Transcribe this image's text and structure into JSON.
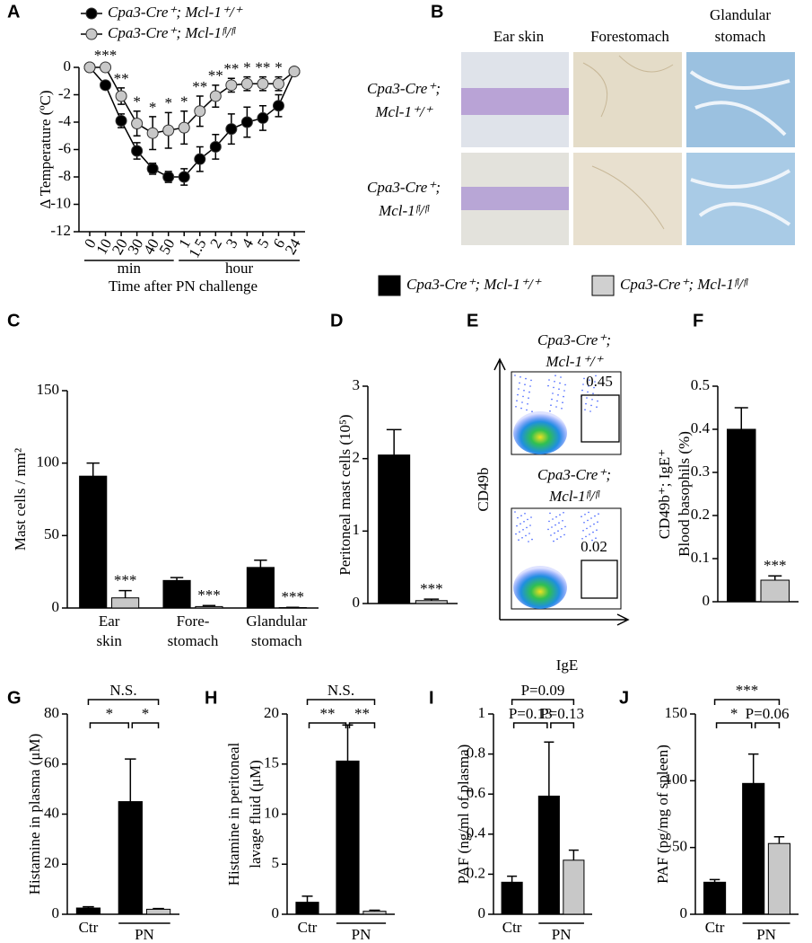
{
  "chart_data": [
    {
      "type": "line",
      "panel": "A",
      "categories": [
        "0",
        "10",
        "20",
        "30",
        "40",
        "50",
        "1",
        "1.5",
        "2",
        "3",
        "4",
        "5",
        "6",
        "24"
      ],
      "x_groups": [
        "min",
        "hour"
      ],
      "xlabel": "Time after PN challenge",
      "ylabel": "Δ Temperature (ºC)",
      "ylim": [
        -12,
        0
      ],
      "yticks": [
        0,
        -2,
        -4,
        -6,
        -8,
        -10,
        -12
      ],
      "series": [
        {
          "name": "Cpa3-Cre⁺; Mcl-1⁺/⁺",
          "color": "#000000",
          "values": [
            0,
            -1.3,
            -3.9,
            -6.1,
            -7.4,
            -8.0,
            -8.0,
            -6.7,
            -5.8,
            -4.5,
            -4.0,
            -3.7,
            -2.8,
            -0.3
          ],
          "errors": [
            0.1,
            0.3,
            0.5,
            0.6,
            0.4,
            0.4,
            0.6,
            0.9,
            0.9,
            1.1,
            1.1,
            0.9,
            0.8,
            0.2
          ]
        },
        {
          "name": "Cpa3-Cre⁺; Mcl-1ᶠˡ/ᶠˡ",
          "color": "#c8c8c8",
          "values": [
            0,
            0,
            -2.1,
            -4.1,
            -4.8,
            -4.6,
            -4.4,
            -3.2,
            -2.1,
            -1.3,
            -1.2,
            -1.2,
            -1.2,
            -0.3
          ],
          "errors": [
            0.1,
            0.2,
            0.6,
            0.9,
            1.2,
            1.3,
            1.2,
            1.1,
            0.8,
            0.5,
            0.5,
            0.5,
            0.5,
            0.2
          ],
          "annotations": [
            null,
            "***",
            "**",
            "*",
            "*",
            "*",
            "*",
            "**",
            "**",
            "**",
            "*",
            "**",
            "*",
            null
          ]
        }
      ]
    },
    {
      "type": "bar",
      "panel": "C",
      "ylabel": "Mast cells / mm²",
      "categories": [
        [
          "Ear",
          "skin"
        ],
        [
          "Fore-",
          "stomach"
        ],
        [
          "Glandular",
          "stomach"
        ]
      ],
      "ylim": [
        0,
        150
      ],
      "yticks": [
        0,
        50,
        100,
        150
      ],
      "series": [
        {
          "color": "#000000",
          "values": [
            91,
            19,
            28
          ],
          "errors": [
            9,
            2,
            5
          ]
        },
        {
          "color": "#c8c8c8",
          "values": [
            7,
            1,
            0.3
          ],
          "errors": [
            5,
            0.7,
            0.2
          ],
          "annotations": [
            "***",
            "***",
            "***"
          ]
        }
      ]
    },
    {
      "type": "bar",
      "panel": "D",
      "ylabel": "Peritoneal mast cells (10⁵)",
      "categories": [
        null
      ],
      "ylim": [
        0,
        3
      ],
      "yticks": [
        0,
        1,
        2,
        3
      ],
      "series": [
        {
          "color": "#000000",
          "values": [
            2.05
          ],
          "errors": [
            0.35
          ]
        },
        {
          "color": "#c8c8c8",
          "values": [
            0.04
          ],
          "errors": [
            0.02
          ],
          "annotations": [
            "***"
          ]
        }
      ]
    },
    {
      "type": "flow",
      "panel": "E",
      "xlabel": "IgE",
      "ylabel": "CD49b",
      "plots": [
        {
          "title": [
            "Cpa3-Cre⁺;",
            "Mcl-1⁺/⁺"
          ],
          "gate": 0.45
        },
        {
          "title": [
            "Cpa3-Cre⁺;",
            "Mcl-1ᶠˡ/ᶠˡ"
          ],
          "gate": 0.02
        }
      ]
    },
    {
      "type": "bar",
      "panel": "F",
      "ylabel": [
        "CD49b⁺; IgE⁺",
        "Blood basophils (%)"
      ],
      "categories": [
        null
      ],
      "ylim": [
        0,
        0.5
      ],
      "yticks": [
        0,
        0.1,
        0.2,
        0.3,
        0.4,
        0.5
      ],
      "series": [
        {
          "color": "#000000",
          "values": [
            0.4
          ],
          "errors": [
            0.05
          ]
        },
        {
          "color": "#c8c8c8",
          "values": [
            0.05
          ],
          "errors": [
            0.01
          ],
          "annotations": [
            "***"
          ]
        }
      ]
    },
    {
      "type": "bar",
      "panel": "G",
      "ylabel": "Histamine in plasma (μM)",
      "categories": [
        "Ctr",
        "PN"
      ],
      "ylim": [
        0,
        80
      ],
      "yticks": [
        0,
        20,
        40,
        60,
        80
      ],
      "brackets": [
        "*",
        "*",
        "N.S."
      ],
      "series": [
        {
          "color": "#000000",
          "values": [
            2.5,
            45
          ],
          "errors": [
            0.5,
            17
          ]
        },
        {
          "color": "#c8c8c8",
          "values": [
            null,
            2
          ],
          "errors": [
            null,
            0.3
          ]
        }
      ]
    },
    {
      "type": "bar",
      "panel": "H",
      "ylabel": [
        "Histamine in peritoneal",
        "lavage fluid (μM)"
      ],
      "categories": [
        "Ctr",
        "PN"
      ],
      "ylim": [
        0,
        20
      ],
      "yticks": [
        0,
        5,
        10,
        15,
        20
      ],
      "brackets": [
        "**",
        "**",
        "N.S."
      ],
      "series": [
        {
          "color": "#000000",
          "values": [
            1.2,
            15.3
          ],
          "errors": [
            0.6,
            3.6
          ]
        },
        {
          "color": "#c8c8c8",
          "values": [
            null,
            0.3
          ],
          "errors": [
            null,
            0.1
          ]
        }
      ]
    },
    {
      "type": "bar",
      "panel": "I",
      "ylabel": "PAF (ng/ml of plasma)",
      "categories": [
        "Ctr",
        "PN"
      ],
      "ylim": [
        0,
        1
      ],
      "yticks": [
        0,
        0.2,
        0.4,
        0.6,
        0.8,
        1
      ],
      "brackets": [
        "P=0.13",
        "P=0.13",
        "P=0.09"
      ],
      "series": [
        {
          "color": "#000000",
          "values": [
            0.16,
            0.59
          ],
          "errors": [
            0.03,
            0.27
          ]
        },
        {
          "color": "#c8c8c8",
          "values": [
            null,
            0.27
          ],
          "errors": [
            null,
            0.05
          ]
        }
      ]
    },
    {
      "type": "bar",
      "panel": "J",
      "ylabel": "PAF (pg/mg of spleen)",
      "categories": [
        "Ctr",
        "PN"
      ],
      "ylim": [
        0,
        150
      ],
      "yticks": [
        0,
        50,
        100,
        150
      ],
      "brackets": [
        "*",
        "P=0.06",
        "***"
      ],
      "series": [
        {
          "color": "#000000",
          "values": [
            24,
            98
          ],
          "errors": [
            2,
            22
          ]
        },
        {
          "color": "#c8c8c8",
          "values": [
            null,
            53
          ],
          "errors": [
            null,
            5
          ]
        }
      ]
    }
  ],
  "panel_b": {
    "panel": "B",
    "columns": [
      [
        "Ear skin"
      ],
      [
        "Forestomach"
      ],
      [
        "Glandular",
        "stomach"
      ]
    ],
    "rows": [
      [
        "Cpa3-Cre⁺;",
        "Mcl-1⁺/⁺"
      ],
      [
        "Cpa3-Cre⁺;",
        "Mcl-1ᶠˡ/ᶠˡ"
      ]
    ]
  },
  "legend": {
    "items": [
      {
        "name": "Cpa3-Cre⁺; Mcl-1⁺/⁺",
        "color": "#000000"
      },
      {
        "name": "Cpa3-Cre⁺; Mcl-1ᶠˡ/ᶠˡ",
        "color": "#d0d0d0"
      }
    ]
  }
}
